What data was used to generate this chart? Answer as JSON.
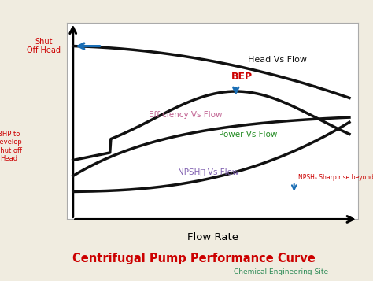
{
  "title": "Centrifugal Pump Performance Curve",
  "subtitle": "Chemical Engineering Site",
  "xlabel": "Flow Rate",
  "bg_color": "#f0ece0",
  "plot_bg": "#ffffff",
  "title_color": "#cc0000",
  "subtitle_color": "#2e8b57",
  "curve_color": "#111111",
  "border_color": "#aaaaaa",
  "labels": {
    "head": "Head Vs Flow",
    "efficiency": "Efficiency Vs Flow",
    "power": "Power Vs Flow",
    "npshr": "NPSHᴯ Vs Flow",
    "bep": "BEP",
    "npsh_note": "NPSHₐ Sharp rise beyond BEP",
    "shut_off_head": "Shut\nOff Head",
    "bhp_label": "BHP to\ndevelop\nShut off\nHead"
  },
  "label_colors": {
    "head": "#111111",
    "efficiency": "#c06090",
    "power": "#228b22",
    "npshr": "#8060b0",
    "bep": "#cc0000",
    "npsh_note": "#cc0000",
    "shut_off_head": "#cc0000",
    "bhp_label": "#cc0000"
  },
  "arrow_color": "#1a6eb5"
}
